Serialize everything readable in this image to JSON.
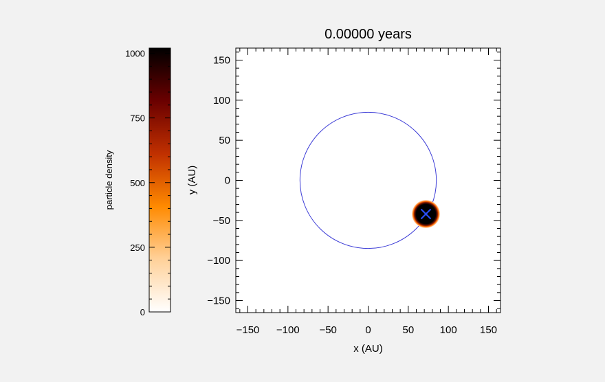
{
  "chart_data": [
    {
      "type": "heatmap",
      "title": "0.00000 years",
      "xlabel": "x (AU)",
      "ylabel": "y (AU)",
      "xlim": [
        -165,
        165
      ],
      "ylim": [
        -165,
        165
      ],
      "xticks": [
        -150,
        -100,
        -50,
        0,
        50,
        100,
        150
      ],
      "yticks": [
        -150,
        -100,
        -50,
        0,
        50,
        100,
        150
      ],
      "orbit": {
        "shape": "circle",
        "center": [
          0,
          0
        ],
        "radius": 85,
        "color": "#3a3ad6"
      },
      "particle_cloud": {
        "center": [
          72,
          -42
        ],
        "radius": 14,
        "fill": "#000000",
        "rim": "#ff6a00"
      },
      "marker": {
        "symbol": "X",
        "center": [
          72,
          -42
        ],
        "size": 6,
        "color": "#2a4fff"
      }
    },
    {
      "type": "colorbar",
      "label": "particle density",
      "range": [
        0,
        1020
      ],
      "ticks": [
        0,
        250,
        500,
        750,
        1000
      ],
      "colormap_stops": [
        "#ffffff",
        "#ffd199",
        "#ff8a00",
        "#c03000",
        "#6a0000",
        "#000000"
      ]
    }
  ]
}
